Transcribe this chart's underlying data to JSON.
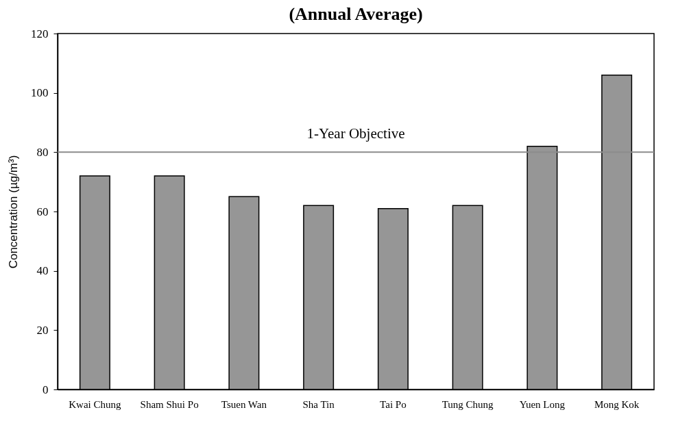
{
  "chart_data": {
    "type": "bar",
    "title": "(Annual Average)",
    "ylabel": "Concentration (µg/m³)",
    "categories": [
      "Kwai Chung",
      "Sham Shui Po",
      "Tsuen Wan",
      "Sha Tin",
      "Tai Po",
      "Tung Chung",
      "Yuen Long",
      "Mong Kok"
    ],
    "values": [
      72,
      72,
      65,
      62,
      61,
      62,
      82,
      106
    ],
    "color": "#969696",
    "ylim": [
      0,
      120
    ],
    "yticks": [
      0,
      20,
      40,
      60,
      80,
      100,
      120
    ],
    "grid": false,
    "ref_lines": [
      {
        "axis": "y",
        "value": 80,
        "label": "1-Year Objective",
        "color": "#8c8c8c"
      }
    ]
  }
}
